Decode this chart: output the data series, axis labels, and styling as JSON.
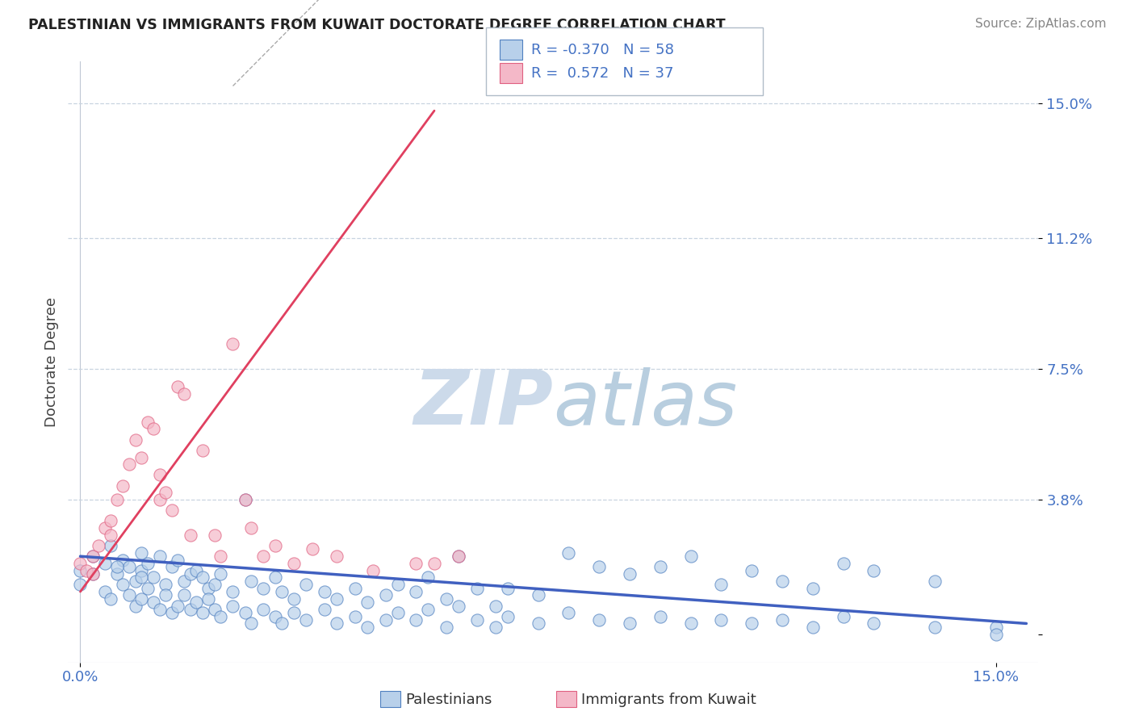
{
  "title": "PALESTINIAN VS IMMIGRANTS FROM KUWAIT DOCTORATE DEGREE CORRELATION CHART",
  "source": "Source: ZipAtlas.com",
  "ylabel": "Doctorate Degree",
  "r_blue": -0.37,
  "n_blue": 58,
  "r_pink": 0.572,
  "n_pink": 37,
  "ytick_vals": [
    0.0,
    0.038,
    0.075,
    0.112,
    0.15
  ],
  "ytick_labels": [
    "",
    "3.8%",
    "7.5%",
    "11.2%",
    "15.0%"
  ],
  "xlim": [
    -0.002,
    0.157
  ],
  "ylim": [
    -0.008,
    0.162
  ],
  "blue_fill": "#b8d0ea",
  "blue_edge": "#5080c0",
  "pink_fill": "#f4b8c8",
  "pink_edge": "#e06080",
  "blue_line_color": "#4060c0",
  "pink_line_color": "#e04060",
  "grid_color": "#c8d4e0",
  "watermark_zip_color": "#c8d8e8",
  "watermark_atlas_color": "#b0c8dc",
  "blue_scatter_x": [
    0.0,
    0.002,
    0.004,
    0.005,
    0.006,
    0.007,
    0.008,
    0.009,
    0.01,
    0.01,
    0.011,
    0.012,
    0.013,
    0.014,
    0.015,
    0.016,
    0.017,
    0.018,
    0.019,
    0.02,
    0.021,
    0.022,
    0.023,
    0.025,
    0.027,
    0.028,
    0.03,
    0.032,
    0.033,
    0.035,
    0.037,
    0.04,
    0.042,
    0.045,
    0.047,
    0.05,
    0.052,
    0.055,
    0.057,
    0.06,
    0.062,
    0.065,
    0.068,
    0.07,
    0.075,
    0.08,
    0.085,
    0.09,
    0.095,
    0.1,
    0.105,
    0.11,
    0.115,
    0.12,
    0.125,
    0.13,
    0.14,
    0.15
  ],
  "blue_scatter_y": [
    0.018,
    0.022,
    0.02,
    0.025,
    0.017,
    0.021,
    0.019,
    0.015,
    0.023,
    0.018,
    0.02,
    0.016,
    0.022,
    0.014,
    0.019,
    0.021,
    0.015,
    0.017,
    0.018,
    0.016,
    0.013,
    0.014,
    0.017,
    0.012,
    0.038,
    0.015,
    0.013,
    0.016,
    0.012,
    0.01,
    0.014,
    0.012,
    0.01,
    0.013,
    0.009,
    0.011,
    0.014,
    0.012,
    0.016,
    0.01,
    0.022,
    0.013,
    0.008,
    0.013,
    0.011,
    0.023,
    0.019,
    0.017,
    0.019,
    0.022,
    0.014,
    0.018,
    0.015,
    0.013,
    0.02,
    0.018,
    0.015,
    0.002
  ],
  "blue_scatter_y2": [
    0.014,
    0.017,
    0.012,
    0.01,
    0.019,
    0.014,
    0.011,
    0.008,
    0.016,
    0.01,
    0.013,
    0.009,
    0.007,
    0.011,
    0.006,
    0.008,
    0.011,
    0.007,
    0.009,
    0.006,
    0.01,
    0.007,
    0.005,
    0.008,
    0.006,
    0.003,
    0.007,
    0.005,
    0.003,
    0.006,
    0.004,
    0.007,
    0.003,
    0.005,
    0.002,
    0.004,
    0.006,
    0.004,
    0.007,
    0.002,
    0.008,
    0.004,
    0.002,
    0.005,
    0.003,
    0.006,
    0.004,
    0.003,
    0.005,
    0.003,
    0.004,
    0.003,
    0.004,
    0.002,
    0.005,
    0.003,
    0.002,
    0.0
  ],
  "pink_scatter_x": [
    0.0,
    0.001,
    0.002,
    0.002,
    0.003,
    0.004,
    0.005,
    0.005,
    0.006,
    0.007,
    0.008,
    0.009,
    0.01,
    0.011,
    0.012,
    0.013,
    0.013,
    0.014,
    0.015,
    0.016,
    0.017,
    0.018,
    0.02,
    0.022,
    0.023,
    0.025,
    0.027,
    0.028,
    0.03,
    0.032,
    0.035,
    0.038,
    0.042,
    0.048,
    0.055,
    0.058,
    0.062
  ],
  "pink_scatter_y": [
    0.02,
    0.018,
    0.022,
    0.017,
    0.025,
    0.03,
    0.032,
    0.028,
    0.038,
    0.042,
    0.048,
    0.055,
    0.05,
    0.06,
    0.058,
    0.045,
    0.038,
    0.04,
    0.035,
    0.07,
    0.068,
    0.028,
    0.052,
    0.028,
    0.022,
    0.082,
    0.038,
    0.03,
    0.022,
    0.025,
    0.02,
    0.024,
    0.022,
    0.018,
    0.02,
    0.02,
    0.022
  ],
  "blue_trend_x": [
    0.0,
    0.155
  ],
  "blue_trend_y": [
    0.022,
    0.003
  ],
  "pink_trend_x": [
    0.0,
    0.058
  ],
  "pink_trend_y": [
    0.012,
    0.148
  ]
}
